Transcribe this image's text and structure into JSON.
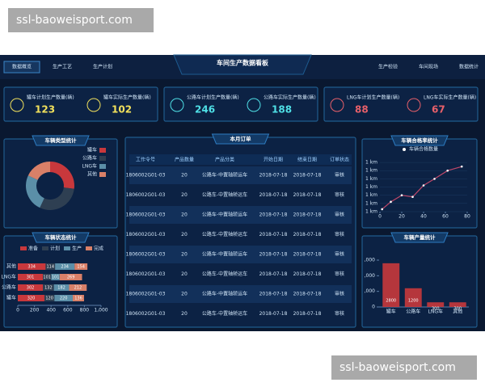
{
  "watermarks": [
    "ssl-baoweisport.com",
    "ssl-baoweisport.com"
  ],
  "nav": {
    "left_tabs": [
      "数据概览",
      "生产工艺",
      "生产计划"
    ],
    "title": "车间生产数据看板",
    "right_tabs": [
      "生产检验",
      "车间现场",
      "数据统计"
    ]
  },
  "kpis": [
    {
      "color": "#f2e15c",
      "items": [
        {
          "label": "罐车计划生产数量(辆)",
          "value": 123
        },
        {
          "label": "罐车实际生产数量(辆)",
          "value": 102
        }
      ]
    },
    {
      "color": "#4fe0e6",
      "items": [
        {
          "label": "公路车计划生产数量(辆)",
          "value": 246
        },
        {
          "label": "公路车实际生产数量(辆)",
          "value": 188
        }
      ]
    },
    {
      "color": "#e8606a",
      "items": [
        {
          "label": "LNG车计划生产数量(辆)",
          "value": 88
        },
        {
          "label": "LNG车实际生产数量(辆)",
          "value": 67
        }
      ]
    }
  ],
  "donut": {
    "title": "车辆类型统计",
    "categories": [
      "罐车",
      "公路车",
      "LNG车",
      "其他"
    ],
    "values": [
      27,
      30,
      25,
      18
    ],
    "colors": [
      "#c8383c",
      "#2e3f52",
      "#5b8fa8",
      "#d98068"
    ]
  },
  "status": {
    "title": "车辆状态统计",
    "categories": [
      "其他",
      "LNG车",
      "公路车",
      "罐车"
    ],
    "series": [
      {
        "name": "准备",
        "color": "#c8383c",
        "values": [
          334,
          301,
          302,
          320
        ]
      },
      {
        "name": "计划",
        "color": "#2e3f52",
        "values": [
          114,
          101,
          132,
          120
        ]
      },
      {
        "name": "生产",
        "color": "#5b8fa8",
        "values": [
          234,
          101,
          182,
          220
        ]
      },
      {
        "name": "完成",
        "color": "#d98068",
        "values": [
          154,
          269,
          212,
          136
        ]
      }
    ],
    "xlim": [
      0,
      1000
    ],
    "xticks": [
      0,
      200,
      400,
      600,
      800,
      {
        "value": 1000,
        "label": "1,000"
      }
    ]
  },
  "orders": {
    "title": "本月订单",
    "columns": [
      "工作令号",
      "产品数量",
      "产品分类",
      "开始日期",
      "结束日期",
      "订单状态"
    ],
    "rows": [
      [
        "1806002G01-03",
        "20",
        "公路车-中置轴轿运车",
        "2018-07-18",
        "2018-07-18",
        "审核"
      ],
      [
        "1806002G01-03",
        "20",
        "公路车-中置轴轿运车",
        "2018-07-18",
        "2018-07-18",
        "审核"
      ],
      [
        "1806002G01-03",
        "20",
        "公路车-中置轴轿运车",
        "2018-07-18",
        "2018-07-18",
        "审核"
      ],
      [
        "1806002G01-03",
        "20",
        "公路车-中置轴轿运车",
        "2018-07-18",
        "2018-07-18",
        "审核"
      ],
      [
        "1806002G01-03",
        "20",
        "公路车-中置轴轿运车",
        "2018-07-18",
        "2018-07-18",
        "审核"
      ],
      [
        "1806002G01-03",
        "20",
        "公路车-中置轴轿运车",
        "2018-07-18",
        "2018-07-18",
        "审核"
      ],
      [
        "1806002G01-03",
        "20",
        "公路车-中置轴轿运车",
        "2018-07-18",
        "2018-07-18",
        "审核"
      ],
      [
        "1806002G01-03",
        "20",
        "公路车-中置轴轿运车",
        "2018-07-18",
        "2018-07-18",
        "审核"
      ]
    ]
  },
  "quality": {
    "title": "车辆合格率统计",
    "series_name": "车辆合格数量",
    "color": "#c0486a",
    "x": [
      2,
      10,
      20,
      30,
      40,
      50,
      62,
      75
    ],
    "values": [
      0.3,
      1.2,
      2,
      1.8,
      3.2,
      4,
      5,
      5.5
    ],
    "xlim": [
      0,
      80
    ],
    "xticks": [
      0,
      20,
      40,
      60,
      80
    ],
    "ylim": [
      0,
      6.5
    ],
    "yticks": [
      {
        "value": 0,
        "label": "1 km"
      },
      {
        "value": 1,
        "label": "1 km"
      },
      {
        "value": 2,
        "label": "1 km"
      },
      {
        "value": 3,
        "label": "1 km"
      },
      {
        "value": 4,
        "label": "1 km"
      },
      {
        "value": 5,
        "label": "1 km"
      },
      {
        "value": 6,
        "label": "1 km"
      }
    ]
  },
  "output": {
    "title": "车辆产量统计",
    "categories": [
      "罐车",
      "公路车",
      "LNG车",
      "其他"
    ],
    "values": [
      2800,
      1200,
      300,
      300
    ],
    "color": "#c8383c",
    "ylim": [
      0,
      3000
    ],
    "yticks": [
      0,
      {
        "value": 1000,
        "label": ",000"
      },
      {
        "value": 2000,
        "label": ",000"
      },
      {
        "value": 3000,
        "label": ",000"
      }
    ]
  }
}
